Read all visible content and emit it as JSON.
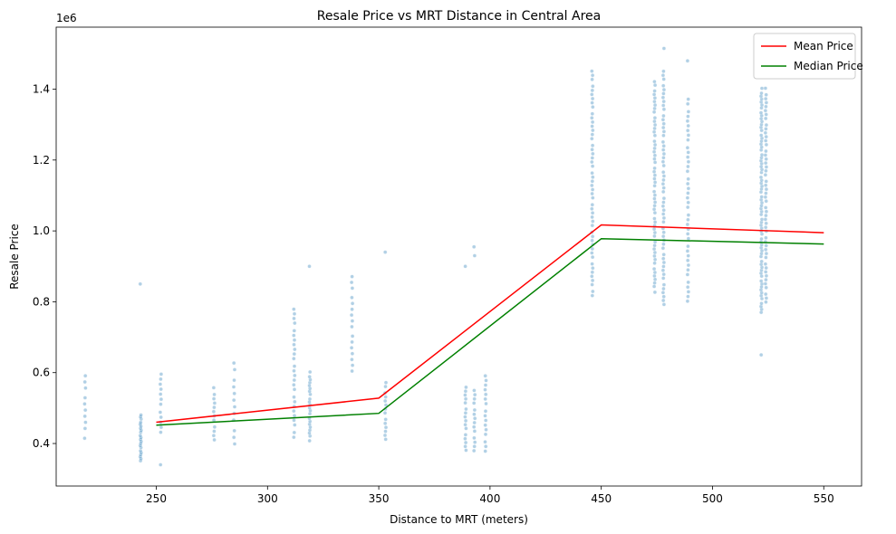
{
  "chart_data": {
    "type": "scatter",
    "title": "Resale Price vs MRT Distance in Central Area",
    "xlabel": "Distance to MRT (meters)",
    "ylabel": "Resale Price",
    "y_offset_label": "1e6",
    "xlim": [
      205,
      567
    ],
    "ylim": [
      0.28,
      1.575
    ],
    "x_ticks": [
      250,
      300,
      350,
      400,
      450,
      500,
      550
    ],
    "y_ticks": [
      0.4,
      0.6,
      0.8,
      1.0,
      1.2,
      1.4
    ],
    "y_tick_labels": [
      "0.4",
      "0.6",
      "0.8",
      "1.0",
      "1.2",
      "1.4"
    ],
    "grid": false,
    "legend_position": "top-right",
    "scatter_color": "#1f77b4",
    "scatter_clusters": [
      {
        "x": 218,
        "ymin": 0.42,
        "ymax": 0.59,
        "n": 10
      },
      {
        "x": 243,
        "ymin": 0.35,
        "ymax": 0.48,
        "n": 22,
        "extra": [
          0.85
        ]
      },
      {
        "x": 252,
        "ymin": 0.43,
        "ymax": 0.6,
        "n": 12,
        "extra": [
          0.34
        ]
      },
      {
        "x": 276,
        "ymin": 0.41,
        "ymax": 0.555,
        "n": 12
      },
      {
        "x": 285,
        "ymin": 0.4,
        "ymax": 0.625,
        "n": 12
      },
      {
        "x": 312,
        "ymin": 0.42,
        "ymax": 0.78,
        "n": 26
      },
      {
        "x": 319,
        "ymin": 0.41,
        "ymax": 0.6,
        "n": 22,
        "extra": [
          0.9
        ]
      },
      {
        "x": 338,
        "ymin": 0.6,
        "ymax": 0.87,
        "n": 16
      },
      {
        "x": 353,
        "ymin": 0.41,
        "ymax": 0.57,
        "n": 14,
        "extra": [
          0.94
        ]
      },
      {
        "x": 389,
        "ymin": 0.38,
        "ymax": 0.56,
        "n": 16,
        "extra": [
          0.9
        ]
      },
      {
        "x": 393,
        "ymin": 0.38,
        "ymax": 0.55,
        "n": 14,
        "extra": [
          0.93,
          0.955
        ]
      },
      {
        "x": 398,
        "ymin": 0.38,
        "ymax": 0.595,
        "n": 16
      },
      {
        "x": 446,
        "ymin": 0.82,
        "ymax": 1.45,
        "n": 50
      },
      {
        "x": 474,
        "ymin": 0.83,
        "ymax": 1.42,
        "n": 55
      },
      {
        "x": 478,
        "ymin": 0.79,
        "ymax": 1.45,
        "n": 55,
        "extra": [
          1.515
        ]
      },
      {
        "x": 489,
        "ymin": 0.8,
        "ymax": 1.37,
        "n": 40,
        "extra": [
          1.48
        ]
      },
      {
        "x": 522,
        "ymin": 0.77,
        "ymax": 1.4,
        "n": 70,
        "extra": [
          0.65
        ]
      },
      {
        "x": 524,
        "ymin": 0.8,
        "ymax": 1.4,
        "n": 50
      }
    ],
    "series": [
      {
        "name": "Mean Price",
        "color": "#ff0000",
        "x": [
          250,
          350,
          450,
          550
        ],
        "y": [
          0.46,
          0.528,
          1.017,
          0.995
        ]
      },
      {
        "name": "Median Price",
        "color": "#008000",
        "x": [
          250,
          350,
          450,
          550
        ],
        "y": [
          0.452,
          0.485,
          0.978,
          0.963
        ]
      }
    ]
  }
}
